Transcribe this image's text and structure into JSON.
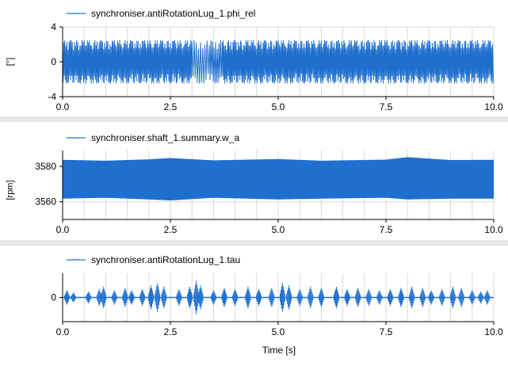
{
  "figure": {
    "x_axis_label": "Time [s]",
    "separator_color": "#e6e6e6",
    "grid_color": "#d9d9d9",
    "axis_color": "#000000",
    "line_color": "#1f6fcf"
  },
  "chart_data": [
    {
      "type": "line",
      "title": "",
      "xlabel": "",
      "ylabel": "[°]",
      "xlim": [
        0,
        10
      ],
      "ylim": [
        -4,
        4
      ],
      "x_ticks": [
        0,
        2.5,
        5,
        7.5,
        10
      ],
      "x_tick_labels": [
        "0.0",
        "2.5",
        "5.0",
        "7.5",
        "10.0"
      ],
      "y_ticks": [
        -4,
        0,
        4
      ],
      "y_tick_labels": [
        "-4",
        "0",
        "4"
      ],
      "grid": true,
      "legend": "top-left",
      "series": [
        {
          "name": "synchroniser.antiRotationLug_1.phi_rel",
          "color": "#1f6fcf",
          "kind": "oscillation",
          "amplitude": 2.5,
          "offset": 0,
          "samples": [
            [
              0.0,
              2.5
            ],
            [
              0.1,
              -2.5
            ],
            [
              0.2,
              2.5
            ],
            [
              0.3,
              -2.5
            ],
            [
              0.4,
              2.5
            ],
            [
              0.5,
              -2.5
            ],
            [
              0.6,
              2.5
            ],
            [
              0.7,
              -2.5
            ],
            [
              0.8,
              2.5
            ],
            [
              0.9,
              -2.5
            ],
            [
              1.0,
              2.5
            ],
            [
              1.1,
              -2.5
            ],
            [
              1.2,
              2.5
            ],
            [
              1.3,
              -2.5
            ],
            [
              1.4,
              2.5
            ],
            [
              1.5,
              -2.5
            ],
            [
              1.6,
              2.5
            ],
            [
              1.7,
              -2.5
            ],
            [
              1.8,
              2.5
            ],
            [
              1.9,
              -2.5
            ],
            [
              2.0,
              2.5
            ],
            [
              2.1,
              -2.5
            ],
            [
              2.2,
              2.5
            ],
            [
              2.3,
              -2.5
            ],
            [
              2.4,
              2.5
            ],
            [
              2.5,
              -2.5
            ],
            [
              2.6,
              2.5
            ],
            [
              2.7,
              -2.5
            ],
            [
              2.8,
              2.5
            ],
            [
              2.9,
              -2.5
            ],
            [
              3.0,
              2.5
            ],
            [
              3.2,
              -2.5
            ],
            [
              3.4,
              2.5
            ],
            [
              3.55,
              -2.5
            ],
            [
              3.7,
              2.5
            ],
            [
              3.8,
              -2.5
            ],
            [
              3.9,
              2.5
            ],
            [
              4.0,
              -2.5
            ],
            [
              4.1,
              2.5
            ],
            [
              4.2,
              -2.5
            ],
            [
              4.3,
              2.5
            ],
            [
              4.4,
              -2.5
            ],
            [
              4.5,
              2.5
            ],
            [
              4.6,
              -2.5
            ],
            [
              4.7,
              2.5
            ],
            [
              4.8,
              -2.5
            ],
            [
              4.9,
              2.5
            ],
            [
              5.0,
              -2.5
            ],
            [
              5.1,
              2.5
            ],
            [
              5.2,
              -2.5
            ],
            [
              5.3,
              2.5
            ],
            [
              5.4,
              -2.5
            ],
            [
              5.5,
              2.5
            ],
            [
              5.6,
              -2.5
            ],
            [
              5.7,
              2.5
            ],
            [
              5.8,
              -2.5
            ],
            [
              5.9,
              2.5
            ],
            [
              6.0,
              -2.5
            ],
            [
              6.1,
              2.5
            ],
            [
              6.2,
              -2.5
            ],
            [
              6.3,
              2.5
            ],
            [
              6.4,
              -2.5
            ],
            [
              6.5,
              2.5
            ],
            [
              6.6,
              -2.5
            ],
            [
              6.7,
              2.5
            ],
            [
              6.8,
              -2.5
            ],
            [
              6.9,
              2.5
            ],
            [
              7.0,
              -2.5
            ],
            [
              7.1,
              2.5
            ],
            [
              7.2,
              -2.5
            ],
            [
              7.3,
              2.5
            ],
            [
              7.4,
              -2.5
            ],
            [
              7.5,
              2.5
            ],
            [
              7.6,
              -2.5
            ],
            [
              7.7,
              2.5
            ],
            [
              7.8,
              -2.5
            ],
            [
              7.9,
              2.5
            ],
            [
              8.0,
              -2.5
            ],
            [
              8.1,
              2.5
            ],
            [
              8.2,
              -2.5
            ],
            [
              8.3,
              2.5
            ],
            [
              8.4,
              -2.5
            ],
            [
              8.5,
              2.5
            ],
            [
              8.6,
              -2.5
            ],
            [
              8.7,
              2.5
            ],
            [
              8.8,
              -2.5
            ],
            [
              8.9,
              2.5
            ],
            [
              9.0,
              -2.5
            ],
            [
              9.1,
              2.5
            ],
            [
              9.2,
              -2.5
            ],
            [
              9.3,
              2.5
            ],
            [
              9.4,
              -2.5
            ],
            [
              9.5,
              2.5
            ],
            [
              9.6,
              -2.5
            ],
            [
              9.7,
              2.5
            ],
            [
              9.8,
              -2.5
            ],
            [
              9.9,
              2.5
            ],
            [
              10.0,
              -2.5
            ]
          ]
        }
      ]
    },
    {
      "type": "line",
      "title": "",
      "xlabel": "",
      "ylabel": "[rpm]",
      "xlim": [
        0,
        10
      ],
      "ylim": [
        3550,
        3589
      ],
      "x_ticks": [
        0,
        2.5,
        5,
        7.5,
        10
      ],
      "x_tick_labels": [
        "0.0",
        "2.5",
        "5.0",
        "7.5",
        "10.0"
      ],
      "y_ticks": [
        3560,
        3580
      ],
      "y_tick_labels": [
        "3560",
        "3580"
      ],
      "grid": true,
      "legend": "top-left",
      "series": [
        {
          "name": "synchroniser.shaft_1.summary.w_a",
          "color": "#1f6fcf",
          "kind": "band",
          "upper_envelope": [
            [
              0,
              3583.5
            ],
            [
              1.0,
              3583.0
            ],
            [
              2.0,
              3583.8
            ],
            [
              2.5,
              3584.5
            ],
            [
              3.5,
              3583.2
            ],
            [
              5.0,
              3584.0
            ],
            [
              6.0,
              3583.0
            ],
            [
              7.5,
              3583.6
            ],
            [
              8.0,
              3585.0
            ],
            [
              9.0,
              3583.4
            ],
            [
              10.0,
              3583.5
            ]
          ],
          "lower_envelope": [
            [
              0,
              3562.0
            ],
            [
              1.0,
              3562.5
            ],
            [
              2.0,
              3561.5
            ],
            [
              2.5,
              3561.0
            ],
            [
              3.5,
              3562.5
            ],
            [
              5.0,
              3561.5
            ],
            [
              6.0,
              3562.0
            ],
            [
              7.5,
              3562.5
            ],
            [
              8.0,
              3561.5
            ],
            [
              9.0,
              3562.0
            ],
            [
              10.0,
              3562.0
            ]
          ]
        }
      ]
    },
    {
      "type": "line",
      "title": "",
      "xlabel": "Time [s]",
      "ylabel": "",
      "xlim": [
        0,
        10
      ],
      "ylim": [
        -1,
        1
      ],
      "x_ticks": [
        0,
        2.5,
        5,
        7.5,
        10
      ],
      "x_tick_labels": [
        "0.0",
        "2.5",
        "5.0",
        "7.5",
        "10.0"
      ],
      "y_ticks": [
        0
      ],
      "y_tick_labels": [
        "0"
      ],
      "grid": true,
      "legend": "top-left",
      "series": [
        {
          "name": "synchroniser.antiRotationLug_1.tau",
          "color": "#1f6fcf",
          "kind": "bursts",
          "bursts": [
            [
              0.1,
              0.3
            ],
            [
              0.25,
              0.2
            ],
            [
              0.6,
              0.25
            ],
            [
              0.85,
              0.35
            ],
            [
              0.95,
              0.45
            ],
            [
              1.2,
              0.3
            ],
            [
              1.45,
              0.4
            ],
            [
              1.6,
              0.3
            ],
            [
              1.85,
              0.35
            ],
            [
              2.05,
              0.5
            ],
            [
              2.2,
              0.6
            ],
            [
              2.35,
              0.45
            ],
            [
              2.7,
              0.35
            ],
            [
              2.95,
              0.45
            ],
            [
              3.1,
              0.7
            ],
            [
              3.2,
              0.5
            ],
            [
              3.5,
              0.3
            ],
            [
              3.75,
              0.4
            ],
            [
              4.0,
              0.35
            ],
            [
              4.3,
              0.45
            ],
            [
              4.55,
              0.35
            ],
            [
              4.85,
              0.4
            ],
            [
              5.1,
              0.6
            ],
            [
              5.25,
              0.5
            ],
            [
              5.5,
              0.35
            ],
            [
              5.75,
              0.45
            ],
            [
              6.0,
              0.4
            ],
            [
              6.35,
              0.45
            ],
            [
              6.6,
              0.35
            ],
            [
              6.85,
              0.4
            ],
            [
              7.1,
              0.35
            ],
            [
              7.35,
              0.3
            ],
            [
              7.6,
              0.35
            ],
            [
              7.85,
              0.4
            ],
            [
              8.1,
              0.45
            ],
            [
              8.35,
              0.4
            ],
            [
              8.55,
              0.3
            ],
            [
              8.8,
              0.35
            ],
            [
              9.05,
              0.45
            ],
            [
              9.25,
              0.4
            ],
            [
              9.5,
              0.3
            ],
            [
              9.7,
              0.25
            ],
            [
              9.85,
              0.3
            ]
          ]
        }
      ]
    }
  ]
}
